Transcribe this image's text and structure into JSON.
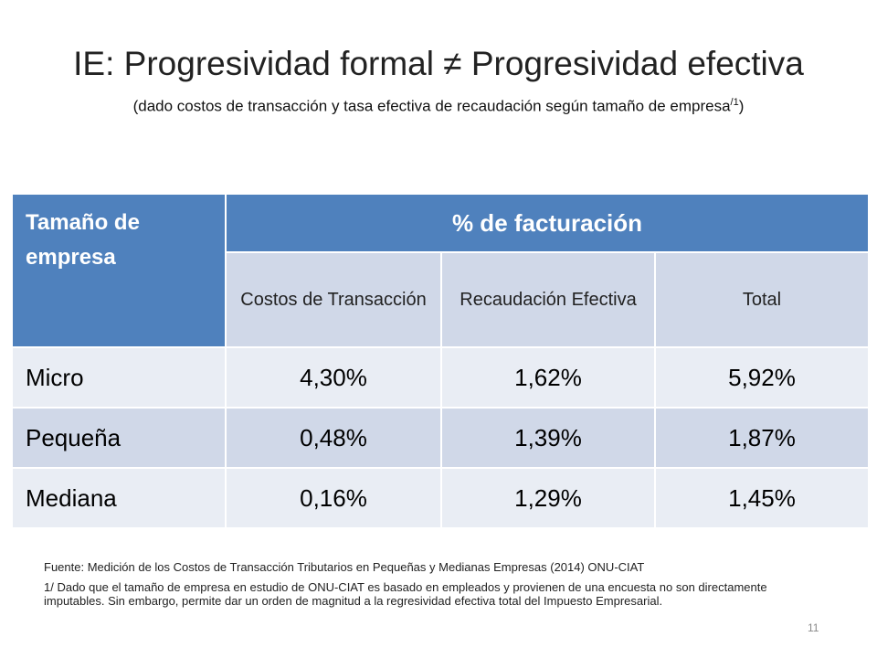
{
  "slide": {
    "title": "IE: Progresividad formal ≠ Progresividad efectiva",
    "subtitle_main": "(dado costos de transacción y tasa efectiva de recaudación según tamaño de empresa",
    "subtitle_sup": "/1",
    "subtitle_close": ")",
    "page_number": "11"
  },
  "table": {
    "header_left": "Tamaño de empresa",
    "header_group": "% de facturación",
    "columns": [
      "Costos de Transacción",
      "Recaudación Efectiva",
      "Total"
    ],
    "rows": [
      {
        "label": "Micro",
        "values": [
          "4,30%",
          "1,62%",
          "5,92%"
        ]
      },
      {
        "label": "Pequeña",
        "values": [
          "0,48%",
          "1,39%",
          "1,87%"
        ]
      },
      {
        "label": "Mediana",
        "values": [
          "0,16%",
          "1,29%",
          "1,45%"
        ]
      }
    ]
  },
  "notes": {
    "source": "Fuente: Medición de los Costos de Transacción Tributarios en Pequeñas y Medianas Empresas (2014) ONU-CIAT",
    "footnote": "1/ Dado que el tamaño de empresa en estudio de ONU-CIAT es basado en empleados y provienen de una encuesta no son directamente imputables. Sin embargo, permite dar un orden de magnitud a la regresividad efectiva total del Impuesto Empresarial."
  },
  "colors": {
    "header_blue": "#4f81bd",
    "band_dark": "#d0d8e8",
    "band_light": "#e9edf4"
  }
}
